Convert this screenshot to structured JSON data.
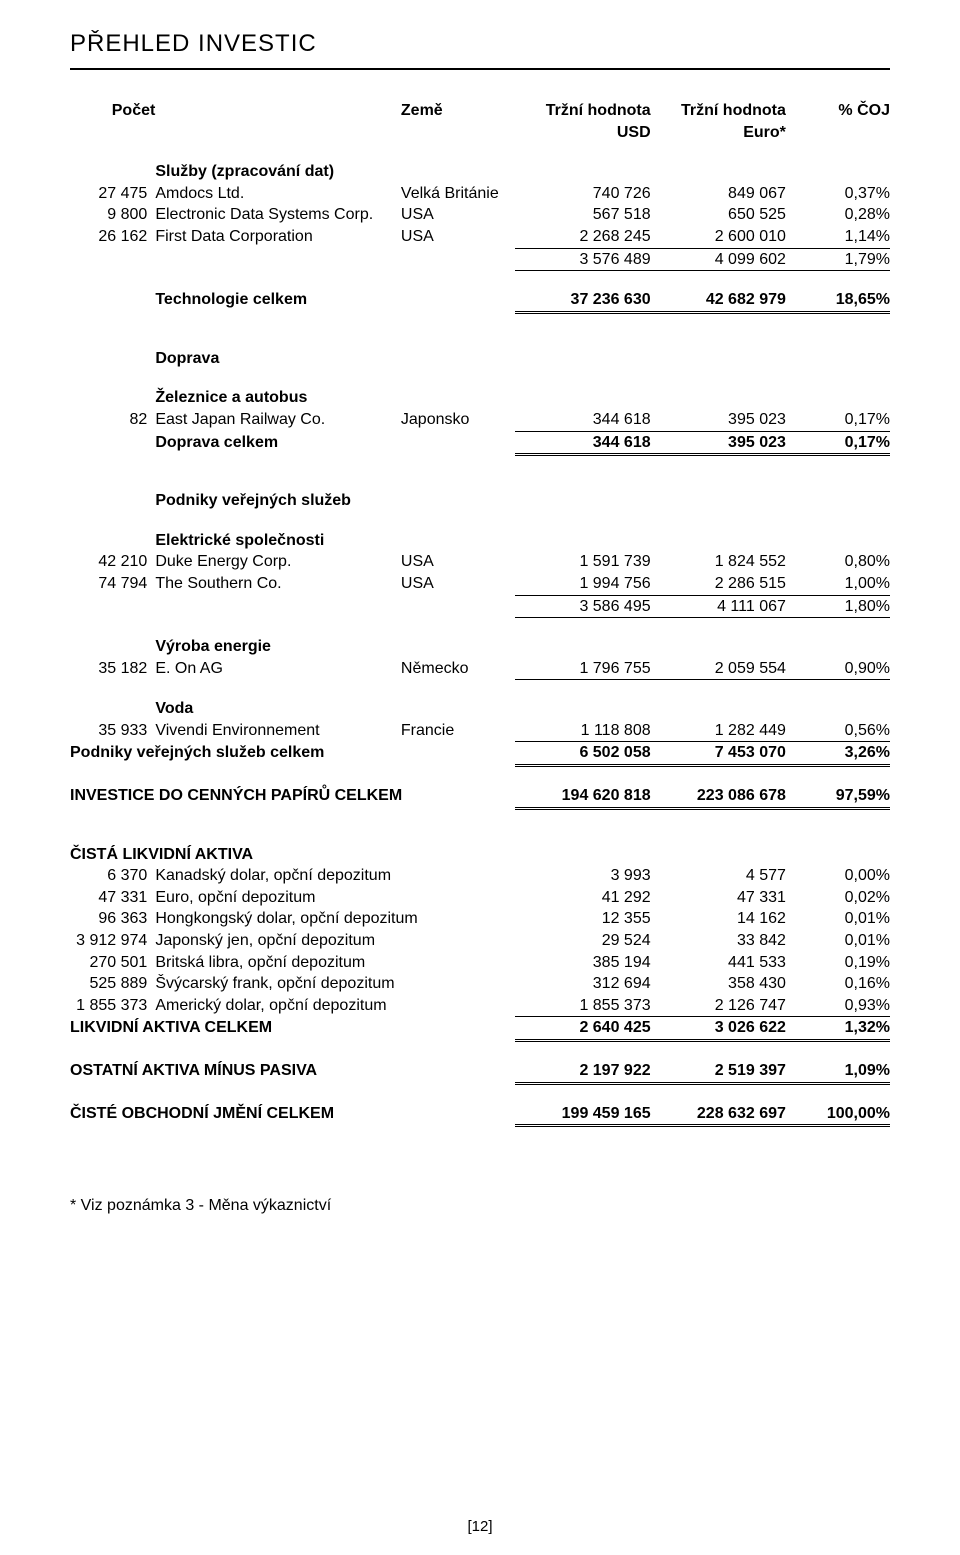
{
  "title": "PŘEHLED INVESTIC",
  "page_number": "[12]",
  "footnote": "* Viz poznámka 3 - Měna výkaznictví",
  "headers": {
    "count": "Počet",
    "country": "Země",
    "usd1": "Tržní hodnota",
    "usd2": "USD",
    "eur1": "Tržní hodnota",
    "eur2": "Euro*",
    "pct": "% ČOJ"
  },
  "sections": {
    "s1_cat": "Služby (zpracování dat)",
    "s1": [
      {
        "idx": "27 475",
        "name": "Amdocs Ltd.",
        "cty": "Velká Británie",
        "usd": "740 726",
        "eur": "849 067",
        "pct": "0,37%"
      },
      {
        "idx": "9 800",
        "name": "Electronic Data Systems Corp.",
        "cty": "USA",
        "usd": "567 518",
        "eur": "650 525",
        "pct": "0,28%"
      },
      {
        "idx": "26 162",
        "name": "First Data Corporation",
        "cty": "USA",
        "usd": "2 268 245",
        "eur": "2 600 010",
        "pct": "1,14%"
      }
    ],
    "s1_sub": {
      "usd": "3 576 489",
      "eur": "4 099 602",
      "pct": "1,79%"
    },
    "s1_total": {
      "label": "Technologie celkem",
      "usd": "37 236 630",
      "eur": "42 682 979",
      "pct": "18,65%"
    },
    "s2_cat": "Doprava",
    "s2_sub": "Železnice a autobus",
    "s2": [
      {
        "idx": "82",
        "name": "East Japan Railway Co.",
        "cty": "Japonsko",
        "usd": "344 618",
        "eur": "395 023",
        "pct": "0,17%"
      }
    ],
    "s2_total": {
      "label": "Doprava celkem",
      "usd": "344 618",
      "eur": "395 023",
      "pct": "0,17%"
    },
    "s3_cat": "Podniky veřejných služeb",
    "s3a_sub": "Elektrické společnosti",
    "s3a": [
      {
        "idx": "42 210",
        "name": "Duke Energy Corp.",
        "cty": "USA",
        "usd": "1 591 739",
        "eur": "1 824 552",
        "pct": "0,80%"
      },
      {
        "idx": "74 794",
        "name": "The Southern Co.",
        "cty": "USA",
        "usd": "1 994 756",
        "eur": "2 286 515",
        "pct": "1,00%"
      }
    ],
    "s3a_subtot": {
      "usd": "3 586 495",
      "eur": "4 111 067",
      "pct": "1,80%"
    },
    "s3b_sub": "Výroba energie",
    "s3b": [
      {
        "idx": "35 182",
        "name": "E. On AG",
        "cty": "Německo",
        "usd": "1 796 755",
        "eur": "2 059 554",
        "pct": "0,90%"
      }
    ],
    "s3c_sub": "Voda",
    "s3c": [
      {
        "idx": "35 933",
        "name": "Vivendi Environnement",
        "cty": "Francie",
        "usd": "1 118 808",
        "eur": "1 282 449",
        "pct": "0,56%"
      }
    ],
    "s3_total": {
      "label": "Podniky veřejných služeb celkem",
      "usd": "6 502 058",
      "eur": "7 453 070",
      "pct": "3,26%"
    },
    "grand_inv": {
      "label": "INVESTICE DO CENNÝCH PAPÍRŮ CELKEM",
      "usd": "194 620 818",
      "eur": "223 086 678",
      "pct": "97,59%"
    },
    "liq_cat": "ČISTÁ LIKVIDNÍ AKTIVA",
    "liq": [
      {
        "idx": "6 370",
        "name": "Kanadský dolar, opční depozitum",
        "usd": "3 993",
        "eur": "4 577",
        "pct": "0,00%"
      },
      {
        "idx": "47 331",
        "name": "Euro, opční depozitum",
        "usd": "41 292",
        "eur": "47 331",
        "pct": "0,02%"
      },
      {
        "idx": "96 363",
        "name": "Hongkongský dolar, opční depozitum",
        "usd": "12 355",
        "eur": "14 162",
        "pct": "0,01%"
      },
      {
        "idx": "3 912 974",
        "name": "Japonský jen, opční depozitum",
        "usd": "29 524",
        "eur": "33 842",
        "pct": "0,01%"
      },
      {
        "idx": "270 501",
        "name": "Britská libra, opční depozitum",
        "usd": "385 194",
        "eur": "441 533",
        "pct": "0,19%"
      },
      {
        "idx": "525 889",
        "name": "Švýcarský frank, opční depozitum",
        "usd": "312 694",
        "eur": "358 430",
        "pct": "0,16%"
      },
      {
        "idx": "1 855 373",
        "name": "Americký dolar, opční depozitum",
        "usd": "1 855 373",
        "eur": "2 126 747",
        "pct": "0,93%"
      }
    ],
    "liq_total": {
      "label": "LIKVIDNÍ AKTIVA CELKEM",
      "usd": "2 640 425",
      "eur": "3 026 622",
      "pct": "1,32%"
    },
    "other": {
      "label": "OSTATNÍ AKTIVA MÍNUS PASIVA",
      "usd": "2 197 922",
      "eur": "2 519 397",
      "pct": "1,09%"
    },
    "grand_total": {
      "label": "ČISTÉ OBCHODNÍ JMĚNÍ CELKEM",
      "usd": "199 459 165",
      "eur": "228 632 697",
      "pct": "100,00%"
    }
  }
}
